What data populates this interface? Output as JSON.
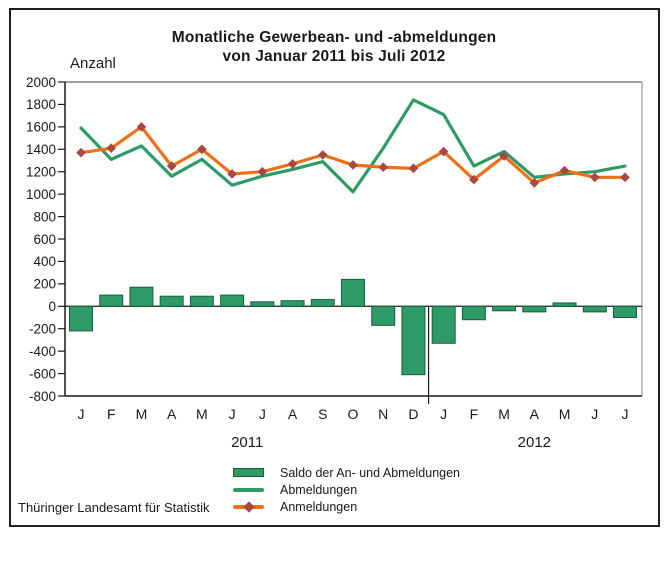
{
  "title": {
    "line1": "Monatliche Gewerbean- und -abmeldungen",
    "line2": "von Januar 2011 bis Juli 2012"
  },
  "y_axis_label": "Anzahl",
  "footer": "Thüringer Landesamt für Statistik",
  "legend": [
    {
      "label": "Saldo der An- und Abmeldungen",
      "type": "bar"
    },
    {
      "label": "Abmeldungen",
      "type": "line"
    },
    {
      "label": "Anmeldungen",
      "type": "line-marker"
    }
  ],
  "colors": {
    "green": "#2E9A66",
    "green_dark": "#1B5E3F",
    "orange": "#EC7014",
    "marker_red": "#A84743",
    "axis_black": "#1a1a1a",
    "axis_gray": "#808080"
  },
  "chart_data": {
    "type": "bar",
    "title": "Monatliche Gewerbean- und -abmeldungen von Januar 2011 bis Juli 2012",
    "ylabel": "Anzahl",
    "xlabel": "",
    "ylim": [
      -800,
      2000
    ],
    "ytick_step": 200,
    "grid": false,
    "legend_position": "bottom",
    "categories": [
      "J",
      "F",
      "M",
      "A",
      "M",
      "J",
      "J",
      "A",
      "S",
      "O",
      "N",
      "D",
      "J",
      "F",
      "M",
      "A",
      "M",
      "J",
      "J"
    ],
    "year_groups": [
      {
        "label": "2011",
        "months": 12
      },
      {
        "label": "2012",
        "months": 7
      }
    ],
    "series": [
      {
        "name": "Saldo der An- und Abmeldungen",
        "type": "bar",
        "color": "#2E9A66",
        "values": [
          -220,
          100,
          170,
          90,
          90,
          100,
          40,
          50,
          60,
          240,
          -170,
          -610,
          -330,
          -120,
          -40,
          -50,
          30,
          -50,
          -100
        ]
      },
      {
        "name": "Abmeldungen",
        "type": "line",
        "color": "#2E9A66",
        "values": [
          1590,
          1310,
          1430,
          1160,
          1310,
          1080,
          1160,
          1220,
          1290,
          1020,
          1410,
          1840,
          1710,
          1250,
          1380,
          1150,
          1180,
          1200,
          1250
        ]
      },
      {
        "name": "Anmeldungen",
        "type": "line",
        "color": "#EC7014",
        "marker": "diamond",
        "marker_color": "#A84743",
        "values": [
          1370,
          1410,
          1600,
          1250,
          1400,
          1180,
          1200,
          1270,
          1350,
          1260,
          1240,
          1230,
          1380,
          1130,
          1340,
          1100,
          1210,
          1150,
          1150
        ]
      }
    ]
  }
}
